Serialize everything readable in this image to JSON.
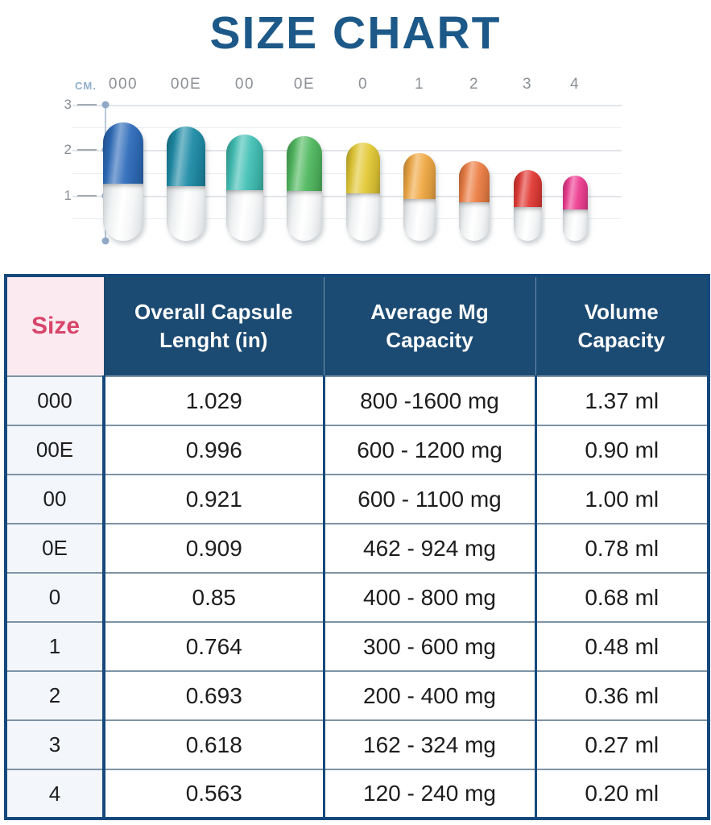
{
  "title": "SIZE CHART",
  "colors": {
    "title_text": "#1D5988",
    "header_bg": "#1B4A72",
    "size_header_bg": "#FBEBF0",
    "size_header_text": "#D8456A",
    "table_border": "#16497B"
  },
  "chart": {
    "unit_label": "CM.",
    "axis_ticks": [
      "3",
      "2",
      "1"
    ],
    "capsules": [
      {
        "label": "000",
        "color": "#2E6CBB",
        "length_cm": 2.61
      },
      {
        "label": "00E",
        "color": "#1E8CA7",
        "length_cm": 2.53
      },
      {
        "label": "00",
        "color": "#41C0B5",
        "length_cm": 2.34
      },
      {
        "label": "0E",
        "color": "#50B95F",
        "length_cm": 2.31
      },
      {
        "label": "0",
        "color": "#E3C935",
        "length_cm": 2.16
      },
      {
        "label": "1",
        "color": "#F0A843",
        "length_cm": 1.94
      },
      {
        "label": "2",
        "color": "#ED7F45",
        "length_cm": 1.76
      },
      {
        "label": "3",
        "color": "#E23A35",
        "length_cm": 1.57
      },
      {
        "label": "4",
        "color": "#EE3D92",
        "length_cm": 1.43
      }
    ]
  },
  "table": {
    "headers": [
      "Size",
      "Overall Capsule Lenght (in)",
      "Average Mg Capacity",
      "Volume Capacity"
    ],
    "rows": [
      {
        "size": "000",
        "length": "1.029",
        "mg": "800 -1600 mg",
        "vol": "1.37 ml"
      },
      {
        "size": "00E",
        "length": "0.996",
        "mg": "600 - 1200 mg",
        "vol": "0.90 ml"
      },
      {
        "size": "00",
        "length": "0.921",
        "mg": "600 - 1100 mg",
        "vol": "1.00 ml"
      },
      {
        "size": "0E",
        "length": "0.909",
        "mg": "462 - 924 mg",
        "vol": "0.78 ml"
      },
      {
        "size": "0",
        "length": "0.85",
        "mg": "400 - 800 mg",
        "vol": "0.68 ml"
      },
      {
        "size": "1",
        "length": "0.764",
        "mg": "300 - 600 mg",
        "vol": "0.48 ml"
      },
      {
        "size": "2",
        "length": "0.693",
        "mg": "200 - 400 mg",
        "vol": "0.36 ml"
      },
      {
        "size": "3",
        "length": "0.618",
        "mg": "162 - 324 mg",
        "vol": "0.27 ml"
      },
      {
        "size": "4",
        "length": "0.563",
        "mg": "120 - 240 mg",
        "vol": "0.20 ml"
      }
    ]
  },
  "chart_data": [
    {
      "type": "bar",
      "title": "SIZE CHART",
      "subtitle": "Capsule sizes drawn to scale in centimeters",
      "categories": [
        "000",
        "00E",
        "00",
        "0E",
        "0",
        "1",
        "2",
        "3",
        "4"
      ],
      "values": [
        2.61,
        2.53,
        2.34,
        2.31,
        2.16,
        1.94,
        1.76,
        1.57,
        1.43
      ],
      "ylabel": "CM.",
      "ylim": [
        0,
        3
      ],
      "yticks": [
        1,
        2,
        3
      ],
      "grid": true,
      "legend_position": "none"
    },
    {
      "type": "table",
      "columns": [
        "Size",
        "Overall Capsule Lenght (in)",
        "Average Mg Capacity",
        "Volume Capacity"
      ],
      "rows": [
        [
          "000",
          "1.029",
          "800 -1600 mg",
          "1.37 ml"
        ],
        [
          "00E",
          "0.996",
          "600 - 1200 mg",
          "0.90 ml"
        ],
        [
          "00",
          "0.921",
          "600 - 1100 mg",
          "1.00 ml"
        ],
        [
          "0E",
          "0.909",
          "462 - 924 mg",
          "0.78 ml"
        ],
        [
          "0",
          "0.85",
          "400 - 800 mg",
          "0.68 ml"
        ],
        [
          "1",
          "0.764",
          "300 - 600 mg",
          "0.48 ml"
        ],
        [
          "2",
          "0.693",
          "200 - 400 mg",
          "0.36 ml"
        ],
        [
          "3",
          "0.618",
          "162 - 324 mg",
          "0.27 ml"
        ],
        [
          "4",
          "0.563",
          "120 - 240 mg",
          "0.20 ml"
        ]
      ]
    }
  ]
}
